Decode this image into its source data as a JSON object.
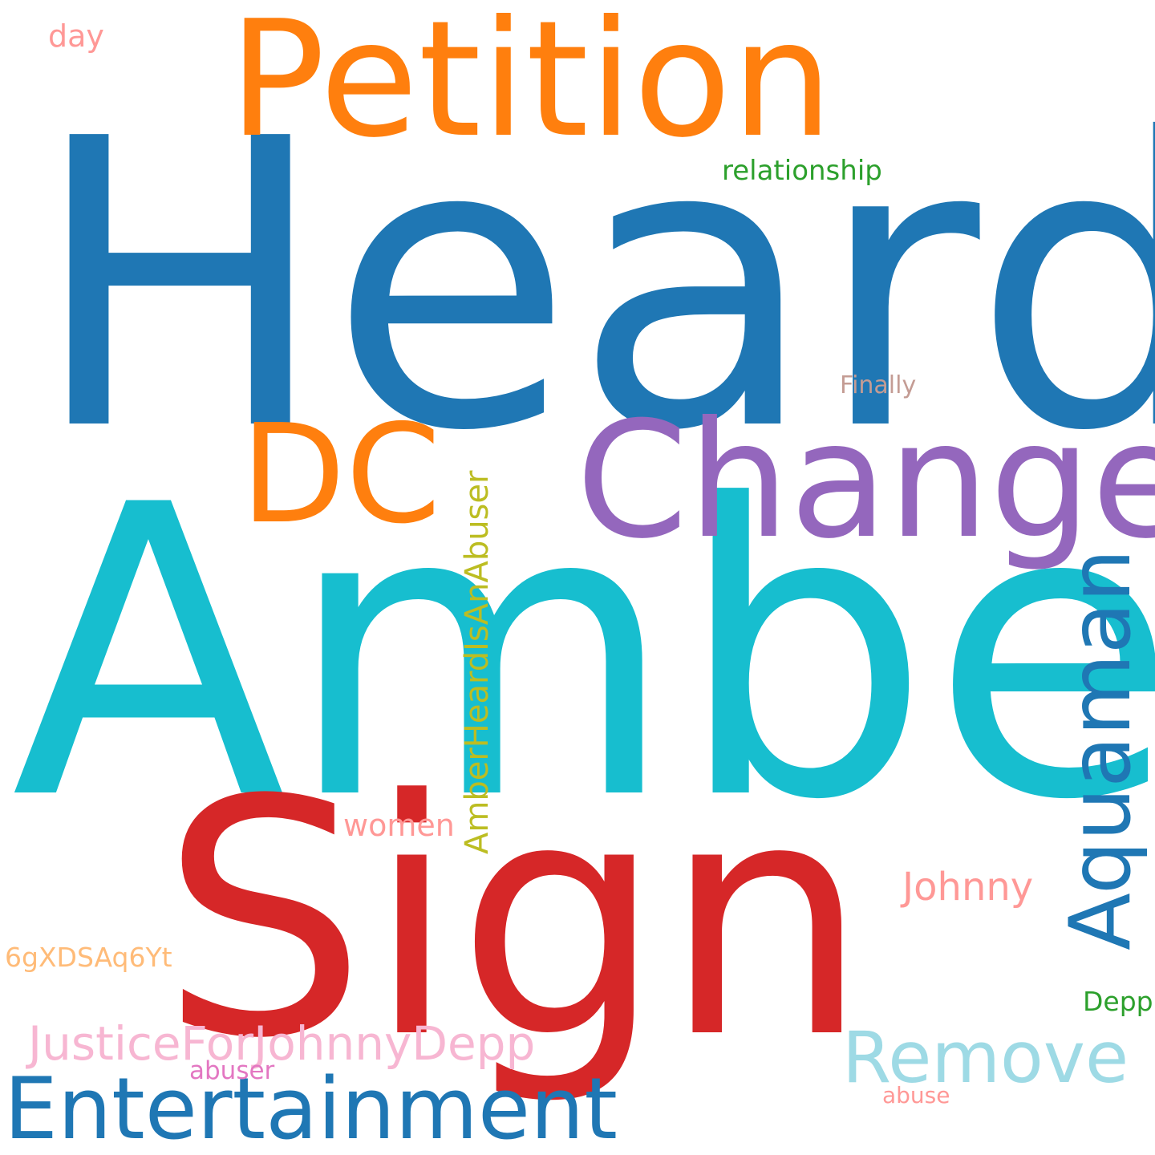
{
  "words": {
    "heard": {
      "text": "Heard",
      "color": "#1f77b4"
    },
    "amber": {
      "text": "Amber",
      "color": "#17becf"
    },
    "sign": {
      "text": "Sign",
      "color": "#d62728"
    },
    "petition": {
      "text": "Petition",
      "color": "#ff7f0e"
    },
    "change": {
      "text": "Change",
      "color": "#9467bd"
    },
    "dc": {
      "text": "DC",
      "color": "#ff7f0e"
    },
    "aquaman": {
      "text": "Aquaman",
      "color": "#1f77b4"
    },
    "entertainment": {
      "text": "Entertainment",
      "color": "#1f77b4"
    },
    "remove": {
      "text": "Remove",
      "color": "#9edae5"
    },
    "justice": {
      "text": "JusticeForJohnnyDepp",
      "color": "#f7b6d2"
    },
    "amberabuser": {
      "text": "AmberHeardIsAnAbuser",
      "color": "#bcbd22"
    },
    "johnny": {
      "text": "Johnny",
      "color": "#ff9896"
    },
    "relationship": {
      "text": "relationship",
      "color": "#2ca02c"
    },
    "finally": {
      "text": "Finally",
      "color": "#c49c94"
    },
    "women": {
      "text": "women",
      "color": "#ff9896"
    },
    "day": {
      "text": "day",
      "color": "#ff9896"
    },
    "code": {
      "text": "6gXDSAq6Yt",
      "color": "#ffbb78"
    },
    "depp": {
      "text": "Depp",
      "color": "#2ca02c"
    },
    "abuser": {
      "text": "abuser",
      "color": "#e377c2"
    },
    "abuse": {
      "text": "abuse",
      "color": "#ff9896"
    }
  }
}
